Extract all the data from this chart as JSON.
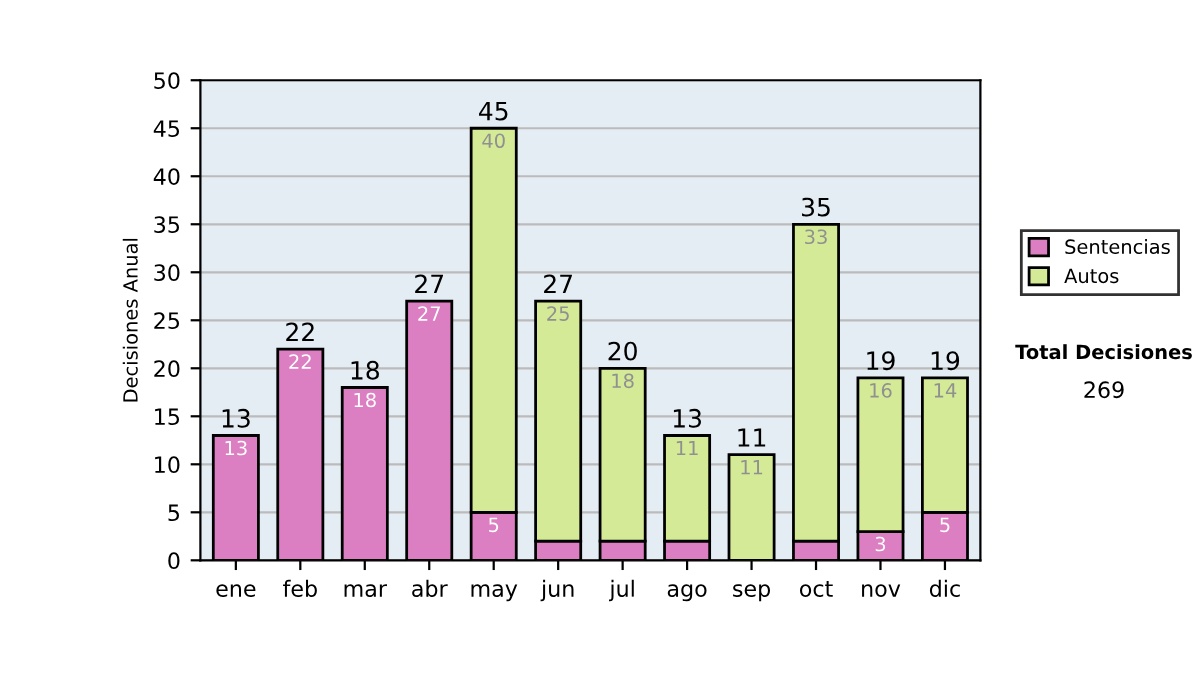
{
  "chart_data": {
    "type": "bar",
    "stacked": true,
    "ylabel": "Decisiones Anual",
    "categories": [
      "ene",
      "feb",
      "mar",
      "abr",
      "may",
      "jun",
      "jul",
      "ago",
      "sep",
      "oct",
      "nov",
      "dic"
    ],
    "series": [
      {
        "name": "Sentencias",
        "color": "#dc7fc2",
        "values": [
          13,
          22,
          18,
          27,
          5,
          2,
          2,
          2,
          0,
          2,
          3,
          5
        ],
        "value_labels": [
          "13",
          "22",
          "18",
          "27",
          "5",
          null,
          null,
          null,
          null,
          null,
          "3",
          "5"
        ]
      },
      {
        "name": "Autos",
        "color": "#d4ea96",
        "values": [
          0,
          0,
          0,
          0,
          40,
          25,
          18,
          11,
          11,
          33,
          16,
          14
        ],
        "value_labels": [
          null,
          null,
          null,
          null,
          "40",
          "25",
          "18",
          "11",
          "11",
          "33",
          "16",
          "14"
        ]
      }
    ],
    "totals": [
      "13",
      "22",
      "18",
      "27",
      "45",
      "27",
      "20",
      "13",
      "11",
      "35",
      "19",
      "19"
    ],
    "ylim": [
      0,
      50
    ],
    "yticks": [
      0,
      5,
      10,
      15,
      20,
      25,
      30,
      35,
      40,
      45,
      50
    ],
    "grid": "y",
    "legend": "right",
    "annotations": [
      "Total Decisiones",
      "269"
    ]
  }
}
